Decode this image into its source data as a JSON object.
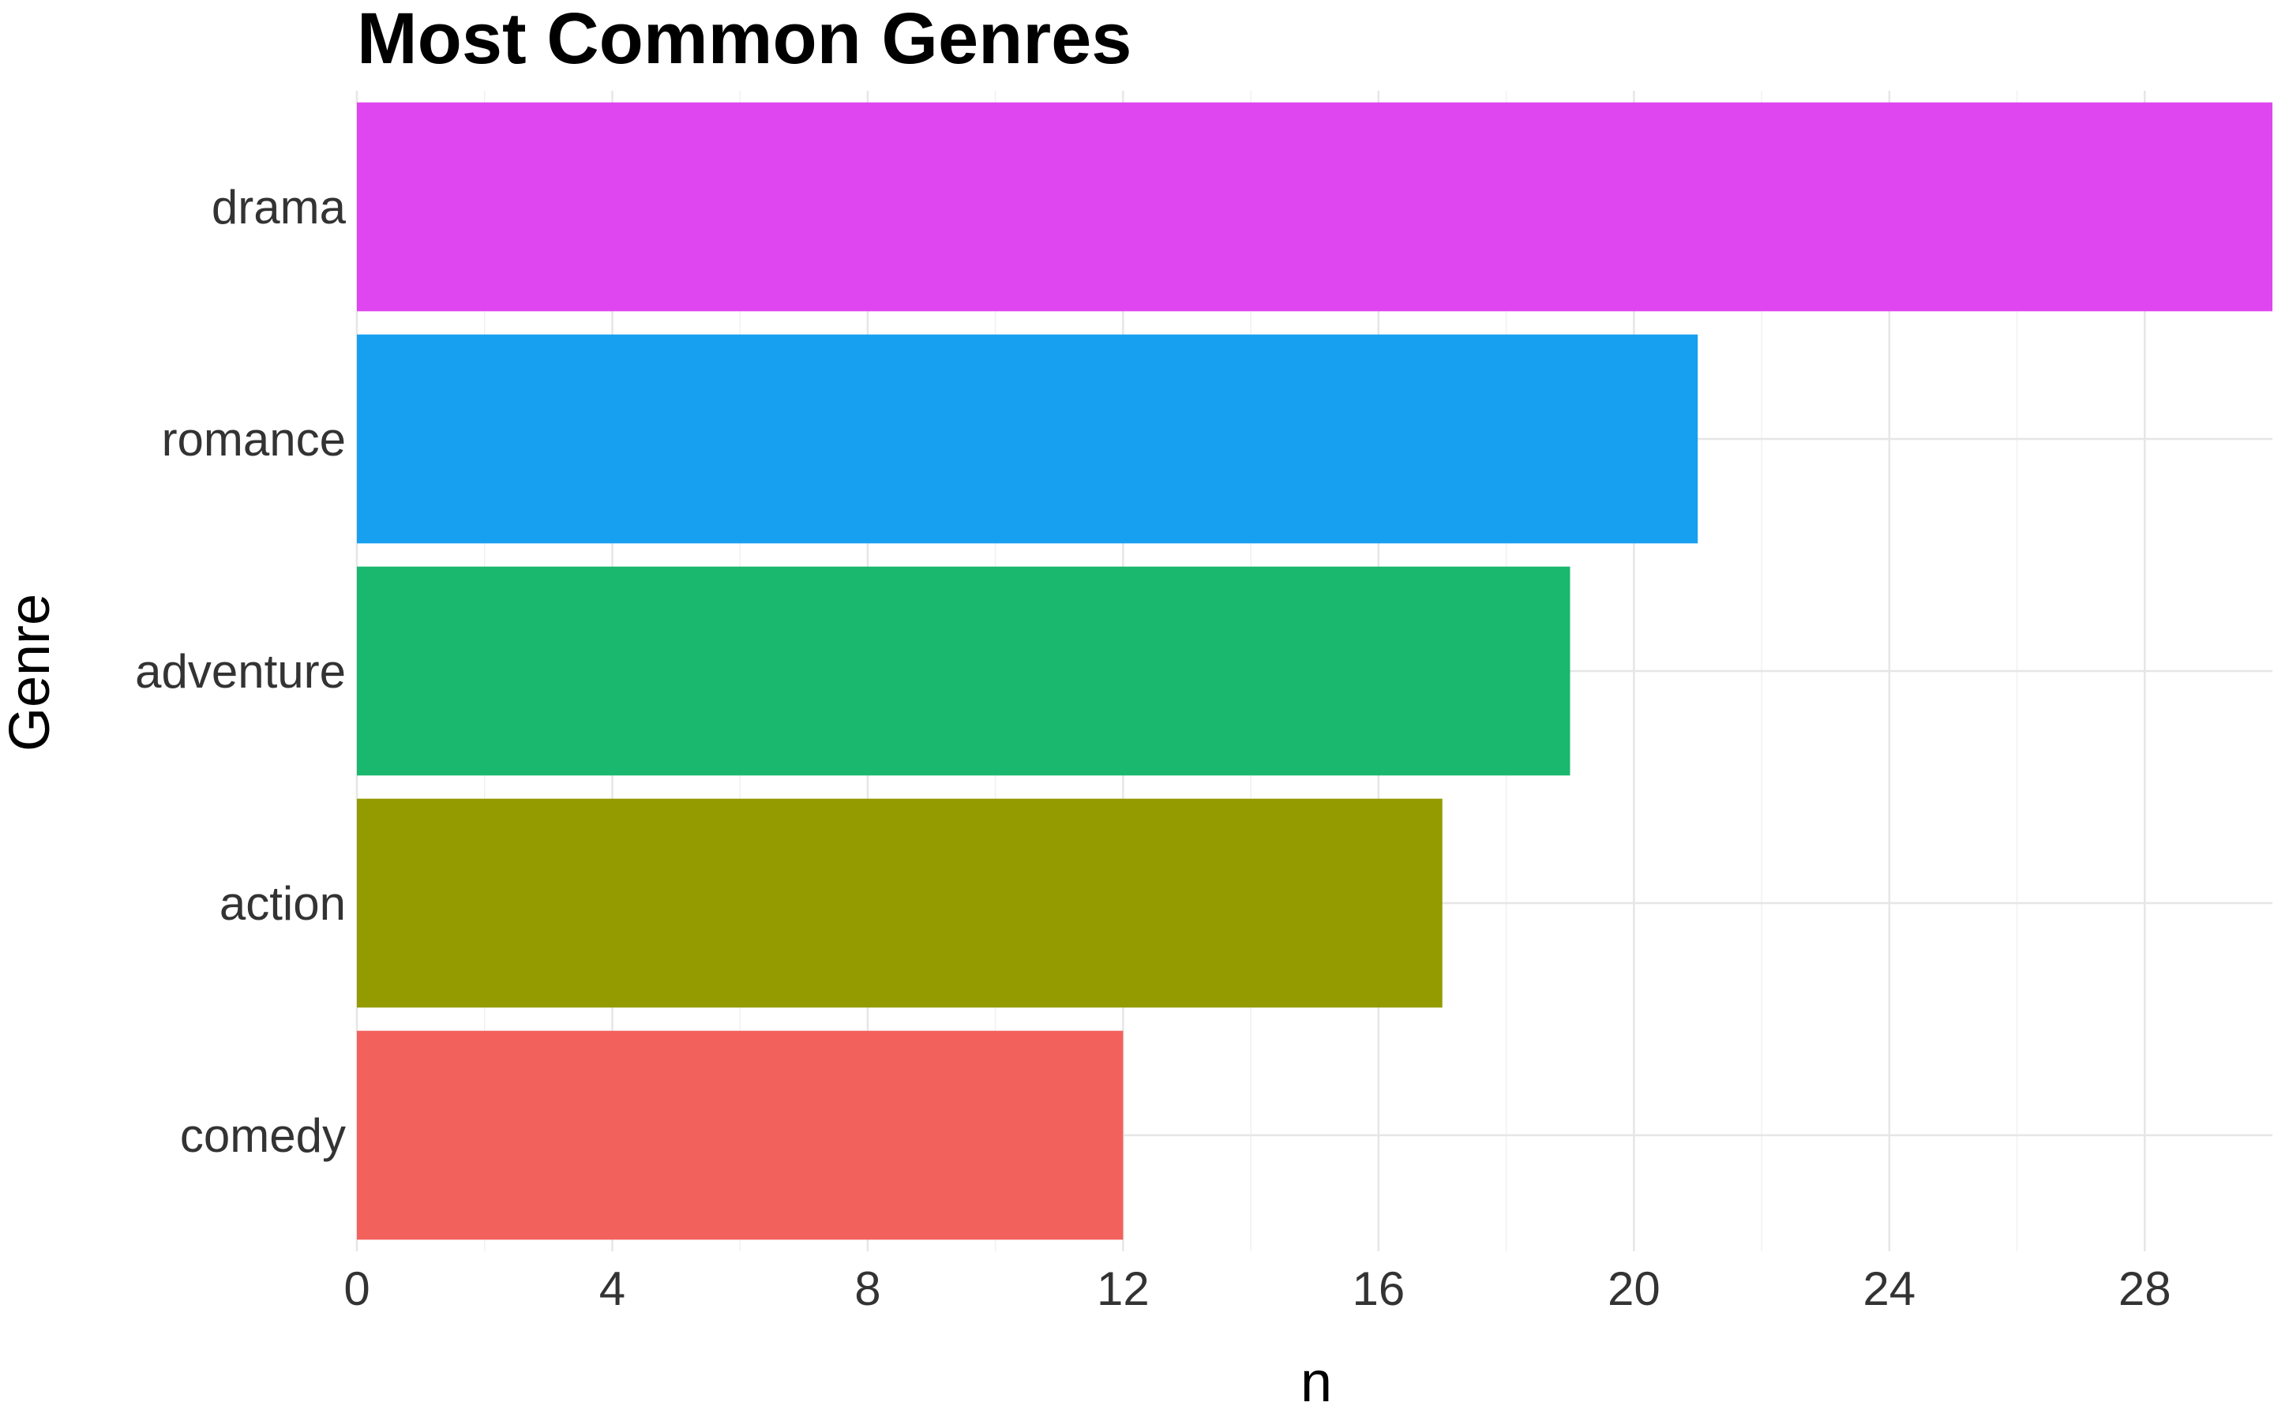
{
  "chart_data": {
    "type": "bar",
    "orientation": "horizontal",
    "title": "Most Common Genres",
    "xlabel": "n",
    "ylabel": "Genre",
    "categories": [
      "drama",
      "romance",
      "adventure",
      "action",
      "comedy"
    ],
    "values": [
      30,
      21,
      19,
      17,
      12
    ],
    "colors": [
      "#E046F0",
      "#17A0F0",
      "#1AB76E",
      "#939B01",
      "#F3615D"
    ],
    "xlim": [
      0,
      30
    ],
    "x_ticks": [
      0,
      4,
      8,
      12,
      16,
      20,
      24,
      28
    ],
    "grid": true,
    "legend": "none"
  }
}
